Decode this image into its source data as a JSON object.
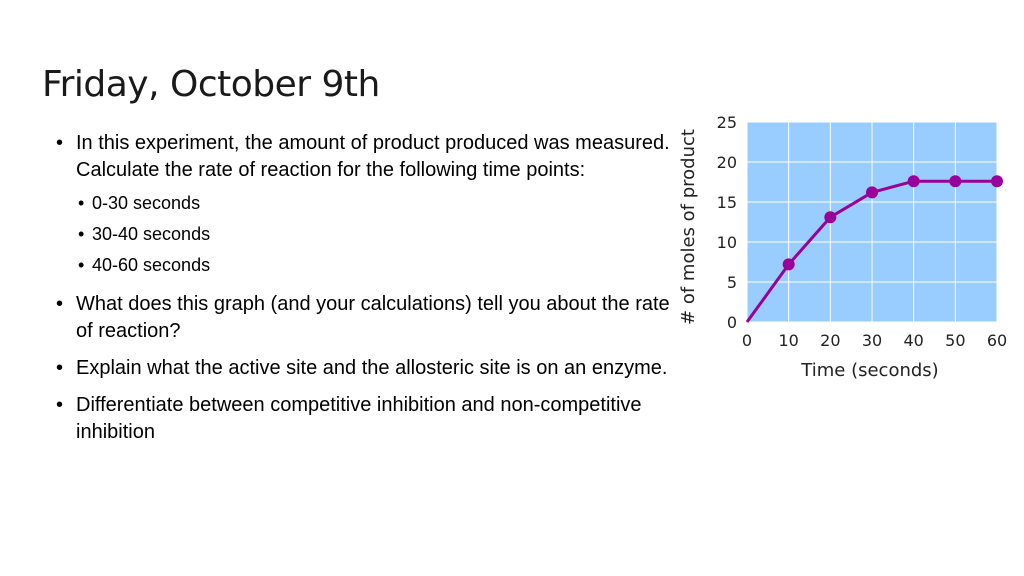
{
  "slide": {
    "title": "Friday, October 9th",
    "bullets": [
      "In this experiment, the amount of product produced was measured.  Calculate the rate of reaction for the following time points:",
      "What does this graph (and your calculations) tell you about the rate of reaction?",
      "Explain what the active site and the allosteric site is on an enzyme.",
      "Differentiate between competitive inhibition and non-competitive inhibition"
    ],
    "sub_bullets": [
      "0-30 seconds",
      "30-40 seconds",
      "40-60 seconds"
    ]
  },
  "chart_data": {
    "type": "line",
    "xlabel": "Time (seconds)",
    "ylabel": "# of moles of product",
    "x": [
      0,
      10,
      20,
      30,
      40,
      50,
      60
    ],
    "series": [
      {
        "values": [
          0,
          7.2,
          13.1,
          16.2,
          17.6,
          17.6,
          17.6
        ]
      }
    ],
    "xlim": [
      0,
      60
    ],
    "ylim": [
      0,
      25
    ],
    "xticks": [
      0,
      10,
      20,
      30,
      40,
      50,
      60
    ],
    "yticks": [
      0,
      5,
      10,
      15,
      20,
      25
    ],
    "grid": true,
    "colors": {
      "line": "#990099",
      "plot_bg": "#99ccff",
      "grid": "#ffffff"
    }
  }
}
